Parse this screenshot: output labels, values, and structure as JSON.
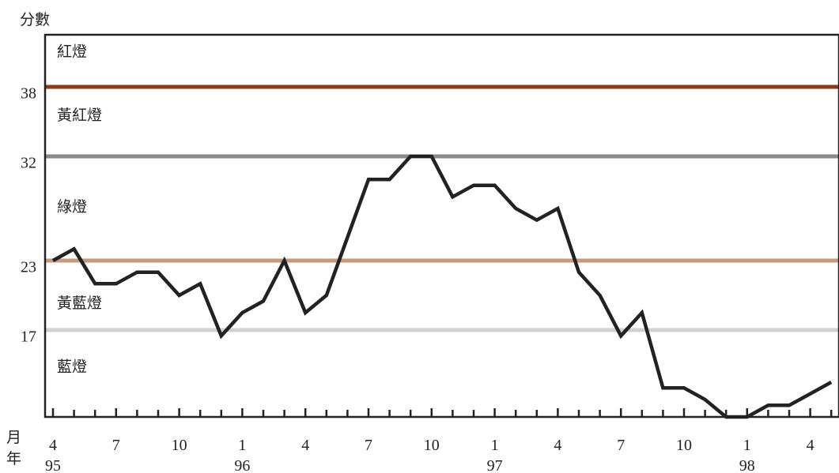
{
  "chart_data": {
    "type": "line",
    "ylabel": "分數",
    "x_row_label_month": "月",
    "x_row_label_year": "年",
    "ylim": [
      10,
      43
    ],
    "y_ticks": [
      38,
      32,
      23,
      17
    ],
    "x_month_labels": [
      "4",
      "7",
      "10",
      "1",
      "4",
      "7",
      "10",
      "1",
      "4",
      "7",
      "10",
      "1",
      "4"
    ],
    "x_year_labels": [
      {
        "label": "95",
        "index": 0
      },
      {
        "label": "96",
        "index": 9
      },
      {
        "label": "97",
        "index": 21
      },
      {
        "label": "98",
        "index": 33
      }
    ],
    "thresholds": [
      {
        "value": 38.5,
        "color": "#8B3A1A"
      },
      {
        "value": 32.5,
        "color": "#8A8A8A"
      },
      {
        "value": 23.5,
        "color": "#C49A80"
      },
      {
        "value": 17.5,
        "color": "#D0D0D0"
      }
    ],
    "zones": [
      {
        "label": "紅燈",
        "level": 41.6
      },
      {
        "label": "黃紅燈",
        "level": 36.1
      },
      {
        "label": "綠燈",
        "level": 28.2
      },
      {
        "label": "黃藍燈",
        "level": 19.9
      },
      {
        "label": "藍燈",
        "level": 14.4
      }
    ],
    "series": [
      {
        "color": "#222222",
        "x_months": [
          "1995-04",
          "1995-05",
          "1995-06",
          "1995-07",
          "1995-08",
          "1995-09",
          "1995-10",
          "1995-11",
          "1995-12",
          "1996-01",
          "1996-02",
          "1996-03",
          "1996-04",
          "1996-05",
          "1996-06",
          "1996-07",
          "1996-08",
          "1996-09",
          "1996-10",
          "1996-11",
          "1996-12",
          "1997-01",
          "1997-02",
          "1997-03",
          "1997-04",
          "1997-05",
          "1997-06",
          "1997-07",
          "1997-08",
          "1997-09",
          "1997-10",
          "1997-11",
          "1997-12",
          "1998-01",
          "1998-02",
          "1998-03",
          "1998-04",
          "1998-05"
        ],
        "values": [
          23.5,
          24.5,
          21.5,
          21.5,
          22.5,
          22.5,
          20.5,
          21.5,
          17,
          19,
          20,
          23.5,
          19,
          20.5,
          25.5,
          30.5,
          30.5,
          32.5,
          32.5,
          29,
          30,
          30,
          28,
          27,
          28,
          22.5,
          20.5,
          17,
          19,
          12.5,
          12.5,
          11.5,
          10,
          10,
          11,
          11,
          12,
          13
        ]
      }
    ]
  }
}
